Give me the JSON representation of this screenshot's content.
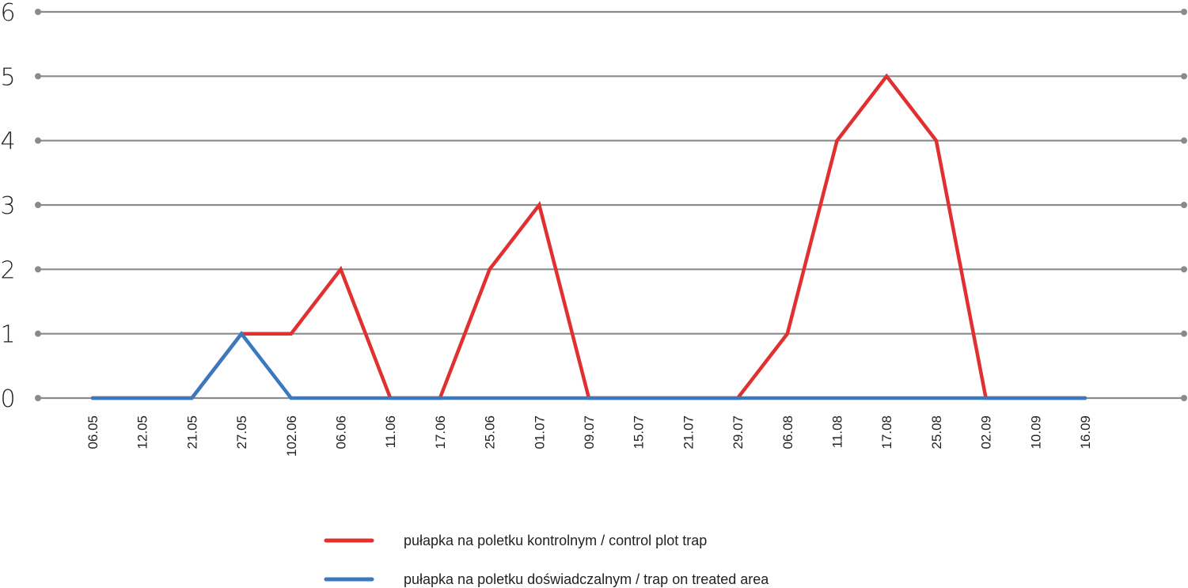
{
  "chart_data": {
    "type": "line",
    "categories": [
      "06.05",
      "12.05",
      "21.05",
      "27.05",
      "102.06",
      "06.06",
      "11.06",
      "17.06",
      "25.06",
      "01.07",
      "09.07",
      "15.07",
      "21.07",
      "29.07",
      "06.08",
      "11.08",
      "17.08",
      "25.08",
      "02.09",
      "10.09",
      "16.09"
    ],
    "series": [
      {
        "name": "pułapka na poletku kontrolnym / control plot trap",
        "color": "#e03030",
        "values": [
          0,
          0,
          0,
          1,
          1,
          2,
          0,
          0,
          2,
          3,
          0,
          0,
          0,
          0,
          1,
          4,
          5,
          4,
          0,
          0,
          0
        ]
      },
      {
        "name": "pułapka na poletku doświadczalnym / trap on treated area",
        "color": "#3a78c0",
        "values": [
          0,
          0,
          0,
          1,
          0,
          0,
          0,
          0,
          0,
          0,
          0,
          0,
          0,
          0,
          0,
          0,
          0,
          0,
          0,
          0,
          0
        ]
      }
    ],
    "yticks": [
      0,
      1,
      2,
      3,
      4,
      5,
      6
    ],
    "ylim": [
      0,
      6
    ],
    "grid": true,
    "legend_position": "bottom-center",
    "title": "",
    "xlabel": "",
    "ylabel": ""
  }
}
